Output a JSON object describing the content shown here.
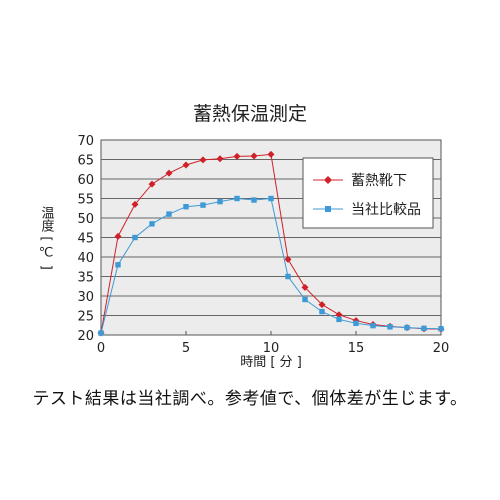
{
  "chart_data": {
    "type": "line",
    "title": "蓄熱保温測定",
    "xlabel": "時間 [ 分 ]",
    "ylabel": "温度 [ ℃ ]",
    "xlim": [
      0,
      20
    ],
    "ylim": [
      20,
      70
    ],
    "x_ticks": [
      0,
      5,
      10,
      15,
      20
    ],
    "y_ticks": [
      20,
      25,
      30,
      35,
      40,
      45,
      50,
      55,
      60,
      65,
      70
    ],
    "grid": "horizontal",
    "legend_position": "top-right",
    "series": [
      {
        "name": "蓄熱靴下",
        "color": "#d0202a",
        "marker": "diamond",
        "x": [
          0,
          1,
          2,
          3,
          4,
          5,
          6,
          7,
          8,
          9,
          10,
          11,
          12,
          13,
          14,
          15,
          16,
          17,
          18,
          19,
          20
        ],
        "values": [
          20.5,
          45.3,
          53.5,
          58.7,
          61.5,
          63.6,
          64.9,
          65.2,
          65.8,
          65.9,
          66.3,
          39.4,
          32.2,
          27.8,
          25.2,
          23.7,
          22.7,
          22.2,
          21.9,
          21.6,
          21.5
        ]
      },
      {
        "name": "当社比較品",
        "color": "#3d9ad6",
        "marker": "square",
        "x": [
          0,
          1,
          2,
          3,
          4,
          5,
          6,
          7,
          8,
          9,
          10,
          11,
          12,
          13,
          14,
          15,
          16,
          17,
          18,
          19,
          20
        ],
        "values": [
          20.5,
          38.0,
          45.0,
          48.5,
          51.0,
          52.9,
          53.3,
          54.2,
          55.0,
          54.6,
          55.0,
          35.0,
          29.1,
          26.0,
          24.0,
          23.0,
          22.4,
          22.1,
          21.9,
          21.7,
          21.6
        ]
      }
    ]
  },
  "footnote": "テスト結果は当社調べ。参考値で、個体差が生じます。"
}
